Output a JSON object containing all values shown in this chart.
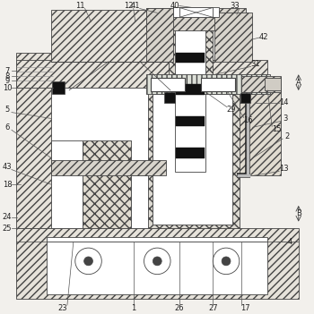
{
  "bg_color": "#f2f0ec",
  "lc": "#444444",
  "lw": 0.6,
  "hatch_lc": "#666666"
}
